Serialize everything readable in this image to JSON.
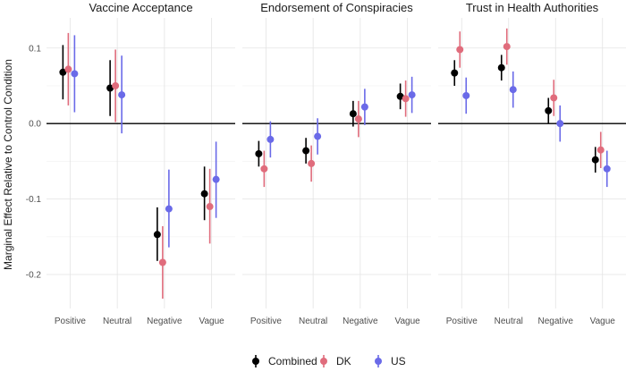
{
  "chart_data": {
    "type": "scatter",
    "subtype": "point-range",
    "ylabel": "Marginal Effect Relative to Control Condition",
    "xlabel": "",
    "ylim": [
      -0.245,
      0.14
    ],
    "yticks": [
      0.1,
      0.0,
      -0.1,
      -0.2
    ],
    "ytick_labels": [
      "0.1",
      "0.0",
      "-0.1",
      "-0.2"
    ],
    "reference_line": 0,
    "grid": true,
    "legend_position": "bottom",
    "categories": [
      "Positive",
      "Neutral",
      "Negative",
      "Vague"
    ],
    "series_names": [
      "Combined",
      "DK",
      "US"
    ],
    "colors": {
      "Combined": "#000000",
      "DK": "#e06c7c",
      "US": "#6a6ae8"
    },
    "facets": [
      {
        "title": "Vaccine Acceptance",
        "series": [
          {
            "name": "Combined",
            "values": [
              0.068,
              0.047,
              -0.147,
              -0.093
            ],
            "lower": [
              0.032,
              0.01,
              -0.182,
              -0.128
            ],
            "upper": [
              0.104,
              0.084,
              -0.111,
              -0.057
            ]
          },
          {
            "name": "DK",
            "values": [
              0.072,
              0.05,
              -0.184,
              -0.11
            ],
            "lower": [
              0.024,
              0.002,
              -0.232,
              -0.159
            ],
            "upper": [
              0.12,
              0.098,
              -0.136,
              -0.06
            ]
          },
          {
            "name": "US",
            "values": [
              0.066,
              0.038,
              -0.113,
              -0.074
            ],
            "lower": [
              0.015,
              -0.013,
              -0.164,
              -0.125
            ],
            "upper": [
              0.117,
              0.09,
              -0.061,
              -0.024
            ]
          }
        ]
      },
      {
        "title": "Endorsement of Conspiracies",
        "series": [
          {
            "name": "Combined",
            "values": [
              -0.04,
              -0.036,
              0.013,
              0.036
            ],
            "lower": [
              -0.057,
              -0.053,
              -0.004,
              0.019
            ],
            "upper": [
              -0.023,
              -0.019,
              0.03,
              0.053
            ]
          },
          {
            "name": "DK",
            "values": [
              -0.06,
              -0.053,
              0.006,
              0.033
            ],
            "lower": [
              -0.084,
              -0.077,
              -0.018,
              0.009
            ],
            "upper": [
              -0.036,
              -0.029,
              0.03,
              0.057
            ]
          },
          {
            "name": "US",
            "values": [
              -0.021,
              -0.017,
              0.022,
              0.038
            ],
            "lower": [
              -0.045,
              -0.041,
              -0.002,
              0.014
            ],
            "upper": [
              0.003,
              0.007,
              0.046,
              0.062
            ]
          }
        ]
      },
      {
        "title": "Trust in Health Authorities",
        "series": [
          {
            "name": "Combined",
            "values": [
              0.067,
              0.074,
              0.017,
              -0.048
            ],
            "lower": [
              0.05,
              0.057,
              0.0,
              -0.065
            ],
            "upper": [
              0.084,
              0.091,
              0.034,
              -0.031
            ]
          },
          {
            "name": "DK",
            "values": [
              0.098,
              0.102,
              0.034,
              -0.035
            ],
            "lower": [
              0.074,
              0.078,
              0.01,
              -0.059
            ],
            "upper": [
              0.122,
              0.126,
              0.058,
              -0.011
            ]
          },
          {
            "name": "US",
            "values": [
              0.037,
              0.045,
              0.0,
              -0.06
            ],
            "lower": [
              0.013,
              0.021,
              -0.024,
              -0.084
            ],
            "upper": [
              0.061,
              0.069,
              0.024,
              -0.036
            ]
          }
        ]
      }
    ]
  }
}
